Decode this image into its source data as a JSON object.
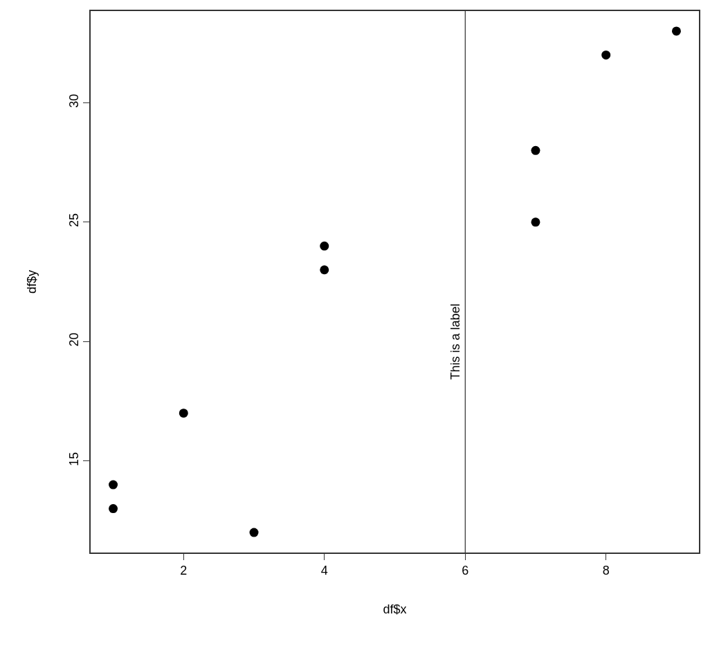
{
  "chart_data": {
    "type": "scatter",
    "xlabel": "df$x",
    "ylabel": "df$y",
    "x": [
      1,
      1,
      2,
      3,
      4,
      4,
      7,
      7,
      8,
      9
    ],
    "values": [
      14,
      13,
      17,
      12,
      24,
      23,
      28,
      25,
      32,
      33
    ],
    "color": "#000000",
    "marker": "circle",
    "grid": false,
    "xlim": [
      0.68,
      9.32
    ],
    "xticks": [
      2,
      4,
      6,
      8
    ],
    "ylim": [
      11.16,
      33.84
    ],
    "yticks": [
      15,
      20,
      25,
      30
    ],
    "ref_lines": [
      {
        "axis": "x",
        "value": 6,
        "color": "#000000"
      }
    ],
    "annotations": [
      {
        "text": "This is a label",
        "x": 6,
        "y": 20
      }
    ]
  }
}
